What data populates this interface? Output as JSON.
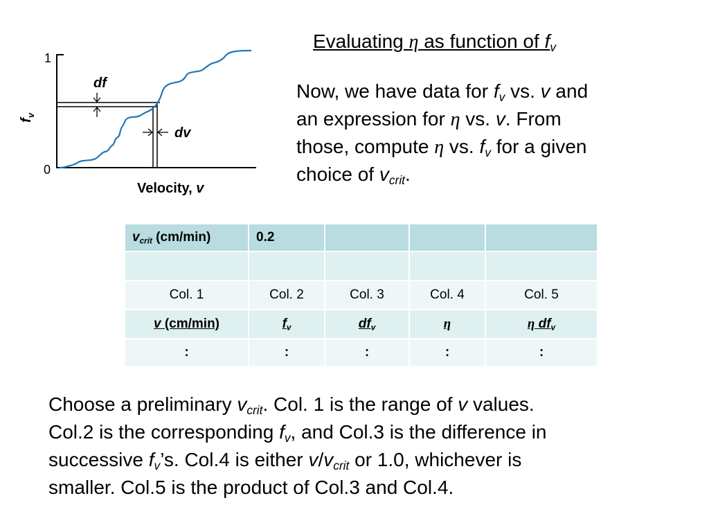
{
  "title": {
    "prefix": "Evaluating ",
    "symbol": "η",
    "middle": " as function of ",
    "var": "f",
    "sub": "v"
  },
  "intro": {
    "l1": [
      "Now, we have data for ",
      "f",
      "v",
      " vs. ",
      "v",
      " and"
    ],
    "l2": [
      "an expression for ",
      "η",
      " vs. ",
      "v",
      ". From"
    ],
    "l3": [
      "those, compute ",
      "η",
      " vs. ",
      "f",
      "v",
      " for a given"
    ],
    "l4": [
      "choice of ",
      "v",
      "crit",
      "."
    ]
  },
  "figure": {
    "y_top": "1",
    "y_zero": "0",
    "ylabel_var": "f",
    "ylabel_sub": "v",
    "xlabel_text": "Velocity, ",
    "xlabel_var": "v",
    "df_label": "df",
    "dv_label": "dv",
    "colors": {
      "curve": "#1f77b4",
      "axes": "#000000"
    }
  },
  "table": {
    "header": {
      "var": "v",
      "sub": "crit",
      "unit": " (cm/min)",
      "value": "0.2"
    },
    "cols": [
      "Col. 1",
      "Col. 2",
      "Col. 3",
      "Col. 4",
      "Col. 5"
    ],
    "qty": {
      "c1_var": "v",
      "c1_unit": " (cm/min)",
      "c2_var": "f",
      "c2_sub": "v",
      "c3_var": "df",
      "c3_sub": "v",
      "c4_sym": "η",
      "c5_sym": "η",
      "c5_var": " df",
      "c5_sub": "v"
    },
    "dots": [
      ":",
      ":",
      ":",
      ":",
      ":"
    ],
    "colors": {
      "header": "#b8dcdf",
      "band": "#dff0f1",
      "light": "#eef6f7"
    }
  },
  "para": {
    "l1": [
      "Choose a preliminary ",
      "v",
      "crit",
      ". Col. 1 is the range of ",
      "v",
      " values."
    ],
    "l2": [
      "Col.2 is the corresponding ",
      "f",
      "v",
      ", and Col.3 is the difference in"
    ],
    "l3": [
      "successive ",
      "f",
      "v",
      "’s. Col.4 is either ",
      "v",
      "/",
      "v",
      "crit",
      " or 1.0, whichever is"
    ],
    "l4": [
      "smaller. Col.5 is the product of Col.3 and Col.4."
    ]
  }
}
